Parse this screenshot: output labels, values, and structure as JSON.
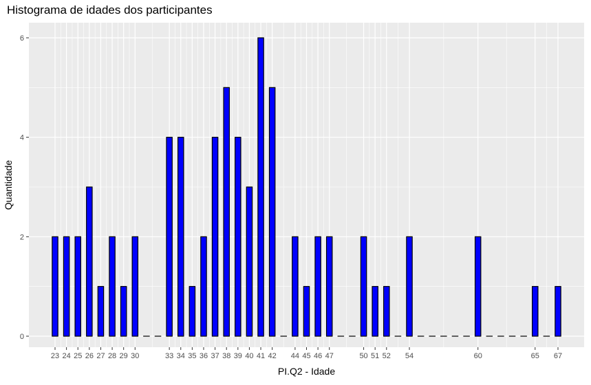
{
  "chart_data": {
    "type": "bar",
    "title": "Histograma de idades dos participantes",
    "xlabel": "PI.Q2 - Idade",
    "ylabel": "Quantidade",
    "x": [
      23,
      24,
      25,
      26,
      27,
      28,
      29,
      30,
      31,
      32,
      33,
      34,
      35,
      36,
      37,
      38,
      39,
      40,
      41,
      42,
      43,
      44,
      45,
      46,
      47,
      48,
      49,
      50,
      51,
      52,
      53,
      54,
      55,
      56,
      57,
      58,
      59,
      60,
      61,
      62,
      63,
      64,
      65,
      66,
      67
    ],
    "values": [
      2,
      2,
      2,
      3,
      1,
      2,
      1,
      2,
      0,
      0,
      4,
      4,
      1,
      2,
      4,
      5,
      4,
      3,
      6,
      5,
      0,
      2,
      1,
      2,
      2,
      0,
      0,
      2,
      1,
      1,
      0,
      2,
      0,
      0,
      0,
      0,
      0,
      2,
      0,
      0,
      0,
      0,
      1,
      0,
      1
    ],
    "x_ticks": [
      23,
      24,
      25,
      26,
      27,
      28,
      29,
      30,
      33,
      34,
      35,
      36,
      37,
      38,
      39,
      40,
      41,
      42,
      44,
      45,
      46,
      47,
      50,
      51,
      52,
      54,
      60,
      65,
      67
    ],
    "y_ticks": [
      0,
      2,
      4,
      6
    ],
    "ylim": [
      0,
      6.3
    ],
    "grid": true,
    "colors": {
      "bar_fill": "#0000ff",
      "bar_stroke": "#000000",
      "panel": "#ebebeb",
      "grid": "#ffffff"
    }
  }
}
